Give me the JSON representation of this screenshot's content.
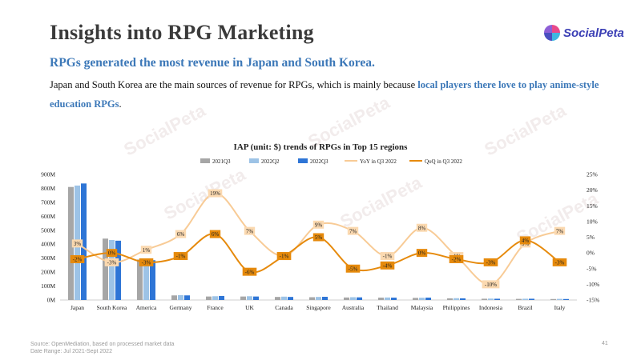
{
  "header": {
    "title": "Insights into RPG Marketing",
    "logo_text": "SocialPeta"
  },
  "subtitle": "RPGs generated the most revenue in Japan and South Korea.",
  "body": {
    "text_plain": "Japan and South Korea are the main sources of revenue for RPGs, which is mainly because ",
    "text_highlight": "local players there love to play anime-style education RPGs",
    "text_end": "."
  },
  "footer": {
    "source": "Source: OpenMediation, based on processed market data",
    "date_range": "Date Range: Jul 2021-Sept 2022",
    "page_number": "41"
  },
  "colors": {
    "bar_2021Q3": "#a6a6a6",
    "bar_2022Q2": "#9dc3e6",
    "bar_2022Q3": "#2e75d6",
    "line_yoy": "#f8cb96",
    "line_qoq": "#e68a0c",
    "label_yoy_bg": "#fbd9b0",
    "label_qoq_bg": "#e68a0c"
  },
  "chart_data": {
    "type": "bar",
    "title": "IAP (unit: $) trends of RPGs in Top 15 regions",
    "categories": [
      "Japan",
      "South Korea",
      "America",
      "Germany",
      "France",
      "UK",
      "Canada",
      "Singapore",
      "Australia",
      "Thailand",
      "Malaysia",
      "Philippines",
      "Indonesia",
      "Brazil",
      "Italy"
    ],
    "series": [
      {
        "name": "2021Q3",
        "type": "bar",
        "axis": "left",
        "values": [
          810000000,
          440000000,
          290000000,
          33000000,
          25000000,
          25000000,
          22000000,
          20000000,
          18000000,
          17000000,
          15000000,
          12000000,
          9000000,
          8000000,
          7000000
        ]
      },
      {
        "name": "2022Q2",
        "type": "bar",
        "axis": "left",
        "values": [
          820000000,
          430000000,
          295000000,
          35000000,
          27000000,
          27000000,
          24000000,
          22000000,
          20000000,
          18000000,
          16000000,
          13000000,
          10000000,
          9000000,
          8000000
        ]
      },
      {
        "name": "2022Q3",
        "type": "bar",
        "axis": "left",
        "values": [
          835000000,
          425000000,
          285000000,
          33000000,
          29000000,
          25000000,
          22000000,
          23000000,
          19000000,
          17000000,
          17000000,
          12000000,
          9000000,
          9000000,
          7000000
        ]
      },
      {
        "name": "YoY in Q3 2022",
        "type": "line",
        "axis": "right",
        "values": [
          3,
          -3,
          1,
          6,
          19,
          7,
          -1,
          9,
          7,
          -1,
          8,
          -1,
          -10,
          3,
          7
        ],
        "labels": [
          "3%",
          "-3%",
          "1%",
          "6%",
          "19%",
          "7%",
          "-1%",
          "9%",
          "7%",
          "-1%",
          "8%",
          "-1%",
          "-10%",
          "3%",
          "7%"
        ]
      },
      {
        "name": "QoQ in Q3 2022",
        "type": "line",
        "axis": "right",
        "values": [
          -2,
          0,
          -3,
          -1,
          6,
          -6,
          -1,
          5,
          -5,
          -4,
          0,
          -2,
          -3,
          4,
          -3
        ],
        "labels": [
          "-2%",
          "0%",
          "-3%",
          "-1%",
          "6%",
          "-6%",
          "-1%",
          "5%",
          "-5%",
          "-4%",
          "0%",
          "-2%",
          "-3%",
          "4%",
          "-3%"
        ]
      }
    ],
    "y_left": {
      "range": [
        0,
        900000000
      ],
      "ticks": [
        0,
        100000000,
        200000000,
        300000000,
        400000000,
        500000000,
        600000000,
        700000000,
        800000000,
        900000000
      ],
      "tick_labels": [
        "0M",
        "100M",
        "200M",
        "300M",
        "400M",
        "500M",
        "600M",
        "700M",
        "800M",
        "900M"
      ]
    },
    "y_right": {
      "range": [
        -15,
        25
      ],
      "ticks": [
        -15,
        -10,
        -5,
        0,
        5,
        10,
        15,
        20,
        25
      ],
      "tick_labels": [
        "-15%",
        "-10%",
        "-5%",
        "0%",
        "5%",
        "10%",
        "15%",
        "20%",
        "25%"
      ]
    },
    "legend": [
      "2021Q3",
      "2022Q2",
      "2022Q3",
      "YoY in Q3 2022",
      "QoQ in Q3 2022"
    ],
    "legend_position": "top",
    "grid": false
  }
}
